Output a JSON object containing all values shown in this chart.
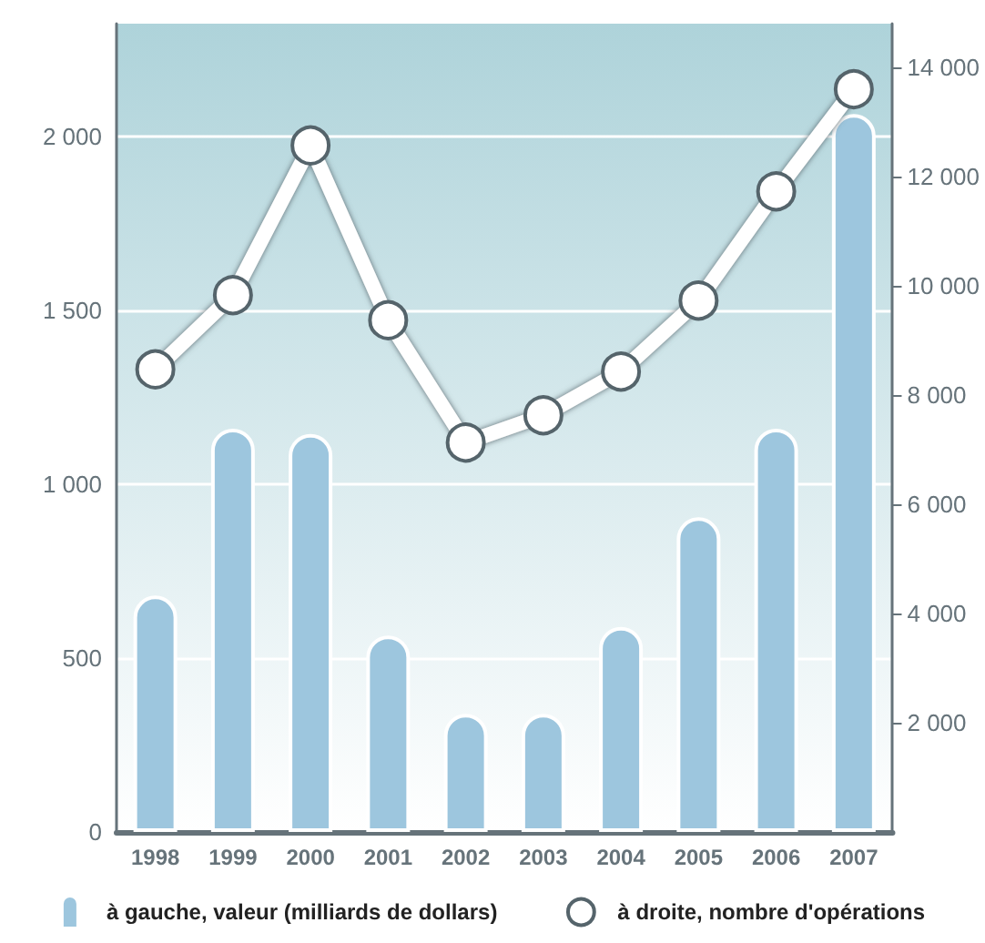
{
  "chart_data": {
    "type": "bar",
    "categories": [
      "1998",
      "1999",
      "2000",
      "2001",
      "2002",
      "2003",
      "2004",
      "2005",
      "2006",
      "2007"
    ],
    "series": [
      {
        "name": "à gauche, valeur (milliards de dollars)",
        "color": "#9dc6de",
        "values": [
          680,
          1160,
          1145,
          565,
          340,
          340,
          590,
          905,
          1160,
          2065
        ]
      },
      {
        "name": "à droite, nombre d'opérations",
        "type": "line",
        "axis": "y2",
        "color": "#ffffff",
        "values": [
          8470,
          9830,
          12570,
          9370,
          7130,
          7630,
          8430,
          9730,
          11730,
          13600
        ]
      }
    ],
    "ylim": [
      0,
      2325
    ],
    "yticks": [
      0,
      500,
      {
        "value": 1000,
        "label": "1 000"
      },
      {
        "value": 1500,
        "label": "1 500"
      },
      {
        "value": 2000,
        "label": "2 000"
      }
    ],
    "y2lim": [
      0,
      14800
    ],
    "y2ticks": [
      {
        "value": 2000,
        "label": "2 000"
      },
      {
        "value": 4000,
        "label": "4 000"
      },
      {
        "value": 6000,
        "label": "6 000"
      },
      {
        "value": 8000,
        "label": "8 000"
      },
      {
        "value": 10000,
        "label": "10 000"
      },
      {
        "value": 12000,
        "label": "12 000"
      },
      {
        "value": 14000,
        "label": "14 000"
      }
    ],
    "grid": "y",
    "legend": "bottom",
    "marker": "circle"
  }
}
